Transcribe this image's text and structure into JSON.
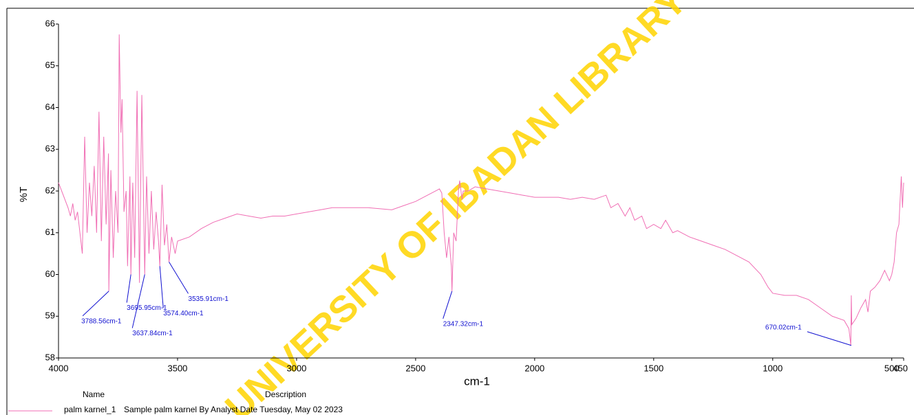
{
  "chart_data": {
    "type": "line",
    "xlabel": "cm-1",
    "ylabel": "%T",
    "xlim": [
      4000,
      450
    ],
    "ylim": [
      58,
      66
    ],
    "xticks": [
      4000,
      3500,
      3000,
      2500,
      2000,
      1500,
      1000,
      500,
      450
    ],
    "yticks": [
      58,
      59,
      60,
      61,
      62,
      63,
      64,
      65,
      66
    ],
    "series": [
      {
        "name": "palm karnel_1",
        "description": "Sample  palm karnel By Analyst Date Tuesday, May 02 2023",
        "color": "#f06eb4",
        "x": [
          4000,
          3980,
          3960,
          3950,
          3940,
          3930,
          3920,
          3910,
          3900,
          3890,
          3880,
          3870,
          3860,
          3850,
          3840,
          3830,
          3820,
          3810,
          3800,
          3790,
          3788.56,
          3780,
          3770,
          3760,
          3750,
          3745,
          3738,
          3733,
          3725,
          3716,
          3710,
          3700,
          3695.95,
          3688,
          3680,
          3670,
          3660,
          3650,
          3637.84,
          3630,
          3620,
          3610,
          3600,
          3590,
          3580,
          3574.4,
          3565,
          3555,
          3545,
          3535.91,
          3525,
          3510,
          3500,
          3450,
          3400,
          3350,
          3300,
          3250,
          3200,
          3150,
          3100,
          3050,
          3000,
          2950,
          2900,
          2850,
          2800,
          2700,
          2600,
          2550,
          2500,
          2450,
          2400,
          2390,
          2380,
          2370,
          2360,
          2350,
          2347.32,
          2340,
          2330,
          2320,
          2315,
          2305,
          2300,
          2280,
          2250,
          2200,
          2150,
          2100,
          2050,
          2000,
          1950,
          1900,
          1850,
          1800,
          1750,
          1700,
          1680,
          1650,
          1620,
          1600,
          1580,
          1550,
          1530,
          1500,
          1470,
          1450,
          1420,
          1400,
          1350,
          1300,
          1250,
          1200,
          1150,
          1100,
          1050,
          1020,
          1000,
          950,
          900,
          850,
          800,
          750,
          700,
          680,
          672,
          670.02,
          668,
          650,
          630,
          610,
          600,
          590,
          570,
          550,
          530,
          510,
          500,
          490,
          480,
          470,
          460,
          455,
          450
        ],
        "values": [
          62.2,
          61.9,
          61.6,
          61.4,
          61.7,
          61.3,
          61.5,
          61.0,
          60.5,
          63.3,
          61.0,
          62.2,
          61.4,
          62.6,
          61.0,
          63.9,
          60.8,
          63.3,
          61.2,
          62.9,
          59.6,
          62.5,
          60.4,
          62.0,
          61.0,
          65.75,
          63.4,
          64.2,
          61.5,
          62.0,
          60.2,
          62.35,
          60.0,
          62.2,
          60.4,
          64.4,
          59.8,
          64.3,
          60.0,
          62.35,
          60.5,
          62.0,
          60.6,
          61.5,
          60.8,
          60.2,
          62.15,
          60.7,
          61.2,
          60.3,
          60.9,
          60.5,
          60.8,
          60.9,
          61.1,
          61.25,
          61.35,
          61.45,
          61.4,
          61.35,
          61.4,
          61.4,
          61.45,
          61.5,
          61.55,
          61.6,
          61.6,
          61.6,
          61.55,
          61.65,
          61.75,
          61.9,
          62.05,
          61.95,
          61.0,
          60.4,
          60.9,
          60.2,
          59.6,
          61.0,
          60.8,
          62.0,
          62.25,
          61.8,
          62.0,
          62.0,
          62.1,
          62.05,
          62.0,
          61.95,
          61.9,
          61.85,
          61.85,
          61.85,
          61.8,
          61.85,
          61.8,
          61.9,
          61.6,
          61.7,
          61.4,
          61.6,
          61.3,
          61.4,
          61.1,
          61.2,
          61.1,
          61.3,
          61.0,
          61.05,
          60.9,
          60.8,
          60.7,
          60.6,
          60.45,
          60.3,
          60.0,
          59.7,
          59.55,
          59.5,
          59.5,
          59.4,
          59.2,
          59.0,
          58.9,
          58.7,
          58.3,
          59.5,
          58.8,
          58.95,
          59.2,
          59.4,
          59.1,
          59.6,
          59.7,
          59.85,
          60.1,
          59.85,
          60.0,
          60.3,
          61.0,
          61.2,
          62.35,
          61.6,
          62.2
        ]
      }
    ],
    "legend_headers": [
      "Name",
      "Description"
    ],
    "annotations": [
      {
        "label": "3788.56cm-1",
        "x": 3788.56,
        "y": 59.6
      },
      {
        "label": "3695.95cm-1",
        "x": 3695.95,
        "y": 60.0
      },
      {
        "label": "3637.84cm-1",
        "x": 3637.84,
        "y": 60.0
      },
      {
        "label": "3574.40cm-1",
        "x": 3574.4,
        "y": 60.2
      },
      {
        "label": "3535.91cm-1",
        "x": 3535.91,
        "y": 60.3
      },
      {
        "label": "2347.32cm-1",
        "x": 2347.32,
        "y": 59.6
      },
      {
        "label": "670.02cm-1",
        "x": 670.02,
        "y": 58.3
      }
    ],
    "watermark": "UNIVERSITY OF IBADAN LIBRARY"
  }
}
